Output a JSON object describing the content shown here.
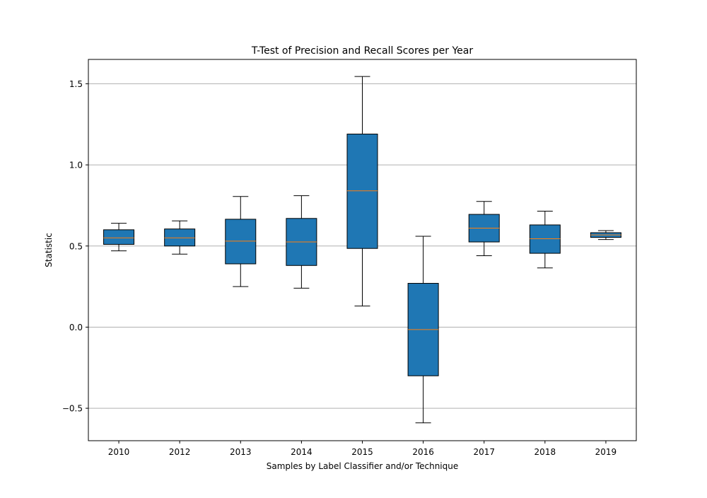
{
  "chart_data": {
    "type": "box",
    "title": "T-Test of Precision and Recall Scores per Year",
    "xlabel": "Samples by Label Classifier and/or Technique",
    "ylabel": "Statistic",
    "ylim": [
      -0.7,
      1.65
    ],
    "yticks": [
      -0.5,
      0.0,
      0.5,
      1.0,
      1.5
    ],
    "ytick_labels": [
      "−0.5",
      "0.0",
      "0.5",
      "1.0",
      "1.5"
    ],
    "grid": "horizontal",
    "categories": [
      "2010",
      "2012",
      "2013",
      "2014",
      "2015",
      "2016",
      "2017",
      "2018",
      "2019"
    ],
    "boxes": [
      {
        "label": "2010",
        "whisker_low": 0.47,
        "q1": 0.51,
        "median": 0.55,
        "q3": 0.6,
        "whisker_high": 0.64
      },
      {
        "label": "2012",
        "whisker_low": 0.45,
        "q1": 0.5,
        "median": 0.55,
        "q3": 0.605,
        "whisker_high": 0.655
      },
      {
        "label": "2013",
        "whisker_low": 0.25,
        "q1": 0.39,
        "median": 0.53,
        "q3": 0.665,
        "whisker_high": 0.805
      },
      {
        "label": "2014",
        "whisker_low": 0.24,
        "q1": 0.38,
        "median": 0.525,
        "q3": 0.67,
        "whisker_high": 0.81
      },
      {
        "label": "2015",
        "whisker_low": 0.13,
        "q1": 0.485,
        "median": 0.84,
        "q3": 1.19,
        "whisker_high": 1.545
      },
      {
        "label": "2016",
        "whisker_low": -0.59,
        "q1": -0.3,
        "median": -0.015,
        "q3": 0.27,
        "whisker_high": 0.56
      },
      {
        "label": "2017",
        "whisker_low": 0.44,
        "q1": 0.525,
        "median": 0.61,
        "q3": 0.695,
        "whisker_high": 0.775
      },
      {
        "label": "2018",
        "whisker_low": 0.365,
        "q1": 0.455,
        "median": 0.545,
        "q3": 0.63,
        "whisker_high": 0.715
      },
      {
        "label": "2019",
        "whisker_low": 0.54,
        "q1": 0.553,
        "median": 0.568,
        "q3": 0.582,
        "whisker_high": 0.595
      }
    ],
    "colors": {
      "box_fill": "#1f77b4",
      "box_edge": "#000000",
      "median": "#ff7f0e",
      "grid": "#b0b0b0"
    }
  }
}
